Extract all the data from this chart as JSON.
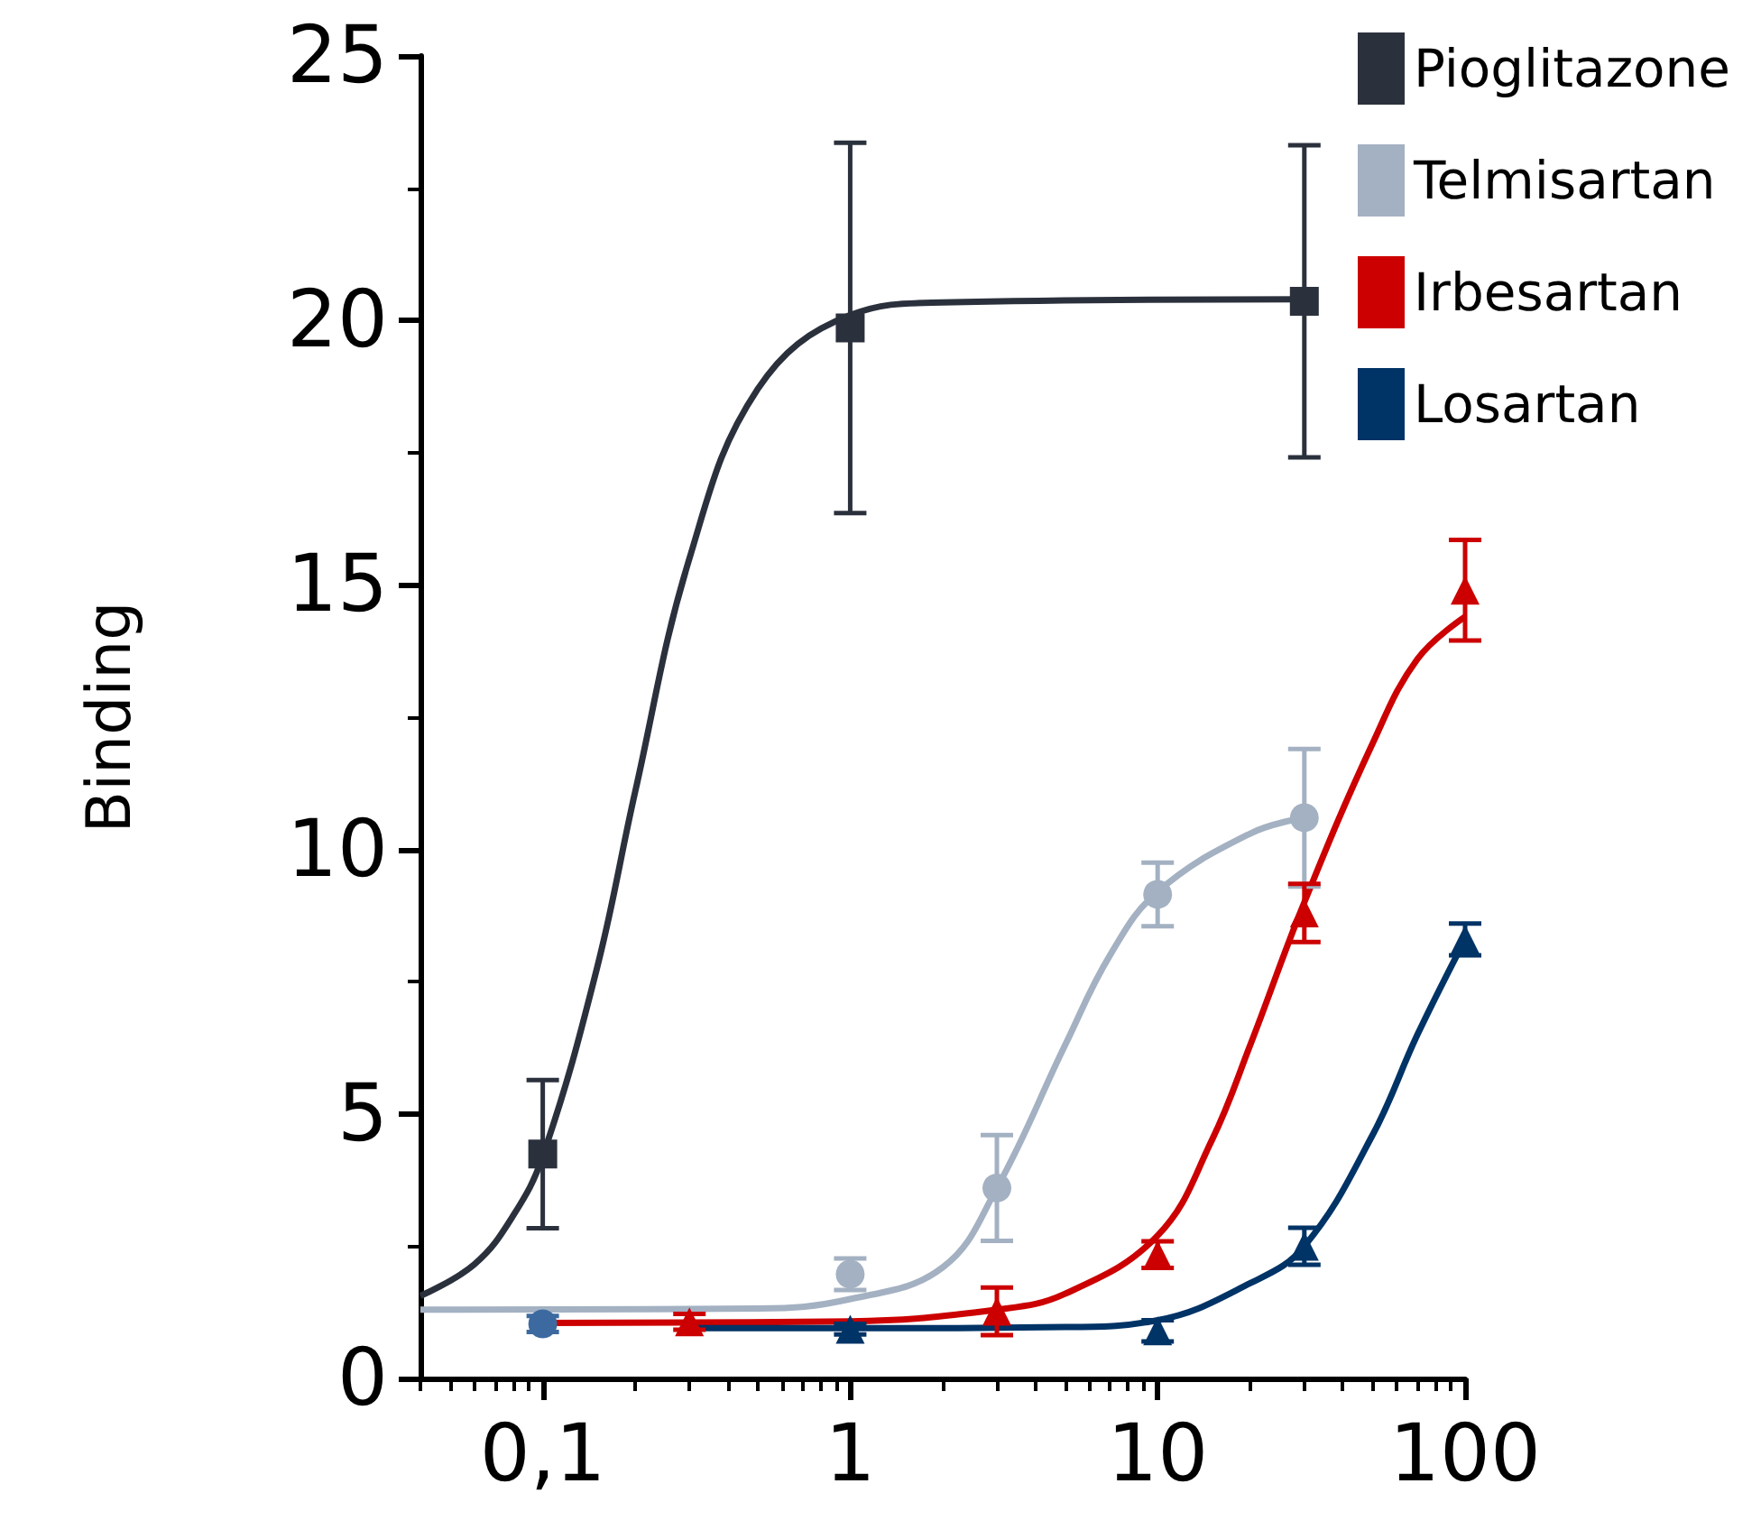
{
  "chart_data": {
    "type": "scatter",
    "ylabel": "Binding",
    "xlim": [
      0.04,
      100
    ],
    "xticks": [
      {
        "value": 0.1,
        "label": "0,1"
      },
      1,
      10,
      100
    ],
    "ylim": [
      0,
      25
    ],
    "yticks": [
      0,
      5,
      10,
      15,
      20,
      25
    ],
    "log": "x",
    "grid": false,
    "legend": "top right",
    "series": [
      {
        "name": "Pioglitazone",
        "color": "#2b313c",
        "marker": "square",
        "x": [
          0.1,
          1,
          30
        ],
        "values": [
          4.24,
          19.86,
          20.36
        ],
        "errors": [
          1.4,
          3.5,
          2.95
        ]
      },
      {
        "name": "Telmisartan",
        "color": "#a3b1c2",
        "marker": "circle",
        "x": [
          1,
          3,
          10,
          30
        ],
        "values": [
          1.97,
          3.6,
          9.15,
          10.6
        ],
        "errors": [
          0.3,
          1.0,
          0.6,
          1.3
        ]
      },
      {
        "name": "Irbesartan",
        "color": "#cc0000",
        "marker": "triangle",
        "x": [
          0.3,
          1,
          3,
          10,
          30,
          100
        ],
        "values": [
          1.07,
          null,
          1.27,
          2.34,
          8.8,
          14.9
        ],
        "errors": [
          0.15,
          null,
          0.45,
          0.25,
          0.55,
          0.95
        ]
      },
      {
        "name": "Losartan",
        "color": "#003366",
        "marker": "triangle",
        "x": [
          1,
          10,
          30,
          100
        ],
        "values": [
          0.93,
          0.9,
          2.5,
          8.3
        ],
        "errors": [
          0.1,
          0.2,
          0.35,
          0.3
        ]
      },
      {
        "color": "#3c6aa0",
        "marker": "circle",
        "x": [
          0.1
        ],
        "values": [
          1.03
        ],
        "errors": [
          0.15
        ]
      },
      {
        "type": "line",
        "color": "#2b313c",
        "marker": "none",
        "x": [
          0.04,
          0.06,
          0.08,
          0.1,
          0.15,
          0.2,
          0.3,
          0.5,
          1,
          2,
          30
        ],
        "values": [
          1.56,
          2.16,
          3.07,
          4.2,
          7.75,
          11.1,
          15.5,
          18.7,
          20.1,
          20.34,
          20.4
        ]
      },
      {
        "type": "line",
        "color": "#a3b1c2",
        "marker": "none",
        "x": [
          0.04,
          0.5,
          1,
          2,
          3,
          5,
          7,
          10,
          20,
          30
        ],
        "values": [
          1.3,
          1.32,
          1.5,
          2.1,
          3.6,
          6.3,
          8.0,
          9.2,
          10.3,
          10.6
        ]
      },
      {
        "type": "line",
        "color": "#cc0000",
        "marker": "none",
        "x": [
          0.1,
          1,
          3,
          5,
          10,
          15,
          20,
          30,
          50,
          70,
          100
        ],
        "values": [
          1.05,
          1.08,
          1.3,
          1.6,
          2.7,
          4.5,
          6.3,
          9.0,
          12.0,
          13.6,
          14.4
        ]
      },
      {
        "type": "line",
        "color": "#003366",
        "marker": "none",
        "x": [
          0.3,
          1,
          5,
          10,
          20,
          30,
          50,
          70,
          100
        ],
        "values": [
          0.95,
          0.95,
          0.97,
          1.1,
          1.8,
          2.5,
          4.6,
          6.5,
          8.3
        ]
      }
    ]
  }
}
